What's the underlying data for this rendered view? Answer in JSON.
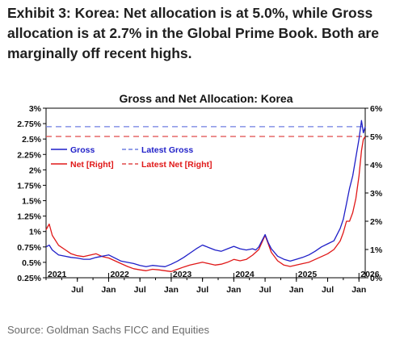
{
  "headline": "Exhibit 3: Korea: Net allocation is at 5.0%, while Gross allocation is at 2.7% in the Global Prime Book. Both are marginally off recent highs.",
  "source": "Source: Goldman Sachs FICC and Equities",
  "colors": {
    "gross": "#1f1fc8",
    "net": "#e01818",
    "latest_gross": "#6e7ee0",
    "latest_net": "#e04a4a",
    "axis": "#000000"
  },
  "chart_data": {
    "type": "line",
    "title": "Gross and Net Allocation: Korea",
    "xlabel": "",
    "ylabel_left": "",
    "ylabel_right": "",
    "xlim": [
      2021.0,
      2026.1
    ],
    "ylim_left": [
      0.25,
      3.0
    ],
    "ylim_right": [
      0,
      6
    ],
    "y_left_ticks": [
      "3%",
      "2.75%",
      "2.5%",
      "2.25%",
      "2%",
      "1.75%",
      "1.5%",
      "1.25%",
      "1%",
      "0.75%",
      "0.5%",
      "0.25%"
    ],
    "y_left_tick_values": [
      3.0,
      2.75,
      2.5,
      2.25,
      2.0,
      1.75,
      1.5,
      1.25,
      1.0,
      0.75,
      0.5,
      0.25
    ],
    "y_right_ticks": [
      "6%",
      "5%",
      "4%",
      "3%",
      "2%",
      "1%",
      "0%"
    ],
    "y_right_tick_values": [
      6,
      5,
      4,
      3,
      2,
      1,
      0
    ],
    "x_year_labels": [
      {
        "label": "2021",
        "x": 2021.0
      },
      {
        "label": "2022",
        "x": 2022.0
      },
      {
        "label": "2023",
        "x": 2023.0
      },
      {
        "label": "2024",
        "x": 2024.0
      },
      {
        "label": "2025",
        "x": 2025.0
      },
      {
        "label": "2026",
        "x": 2026.0
      }
    ],
    "x_month_labels": [
      {
        "label": "Jul",
        "x": 2021.5
      },
      {
        "label": "Jan",
        "x": 2022.0
      },
      {
        "label": "Jul",
        "x": 2022.5
      },
      {
        "label": "Jan",
        "x": 2023.0
      },
      {
        "label": "Jul",
        "x": 2023.5
      },
      {
        "label": "Jan",
        "x": 2024.0
      },
      {
        "label": "Jul",
        "x": 2024.5
      },
      {
        "label": "Jan",
        "x": 2025.0
      },
      {
        "label": "Jul",
        "x": 2025.5
      },
      {
        "label": "Jan",
        "x": 2026.0
      }
    ],
    "legend": [
      {
        "label": "Gross",
        "color": "#1f1fc8",
        "style": "solid"
      },
      {
        "label": "Latest Gross",
        "color": "#6e7ee0",
        "style": "dashed"
      },
      {
        "label": "Net [Right]",
        "color": "#e01818",
        "style": "solid"
      },
      {
        "label": "Latest Net [Right]",
        "color": "#e04a4a",
        "style": "dashed"
      }
    ],
    "legend_position": "upper-left",
    "grid": false,
    "series": [
      {
        "name": "Gross",
        "axis": "left",
        "x": [
          2021.0,
          2021.05,
          2021.1,
          2021.2,
          2021.3,
          2021.4,
          2021.5,
          2021.6,
          2021.7,
          2021.8,
          2021.9,
          2022.0,
          2022.1,
          2022.2,
          2022.3,
          2022.4,
          2022.5,
          2022.6,
          2022.7,
          2022.8,
          2022.9,
          2023.0,
          2023.1,
          2023.2,
          2023.3,
          2023.4,
          2023.5,
          2023.6,
          2023.7,
          2023.8,
          2023.9,
          2024.0,
          2024.1,
          2024.2,
          2024.3,
          2024.35,
          2024.4,
          2024.5,
          2024.55,
          2024.6,
          2024.7,
          2024.8,
          2024.9,
          2025.0,
          2025.1,
          2025.2,
          2025.3,
          2025.4,
          2025.5,
          2025.6,
          2025.7,
          2025.75,
          2025.8,
          2025.85,
          2025.9,
          2025.95,
          2026.0,
          2026.04,
          2026.07,
          2026.1
        ],
        "values": [
          0.75,
          0.78,
          0.7,
          0.62,
          0.6,
          0.58,
          0.57,
          0.55,
          0.55,
          0.58,
          0.6,
          0.62,
          0.57,
          0.52,
          0.5,
          0.48,
          0.45,
          0.43,
          0.45,
          0.44,
          0.43,
          0.47,
          0.52,
          0.58,
          0.65,
          0.72,
          0.78,
          0.74,
          0.7,
          0.68,
          0.72,
          0.76,
          0.72,
          0.7,
          0.72,
          0.7,
          0.75,
          0.95,
          0.82,
          0.72,
          0.6,
          0.55,
          0.52,
          0.55,
          0.58,
          0.62,
          0.68,
          0.75,
          0.8,
          0.85,
          1.05,
          1.2,
          1.45,
          1.7,
          1.9,
          2.2,
          2.5,
          2.8,
          2.6,
          2.7
        ]
      },
      {
        "name": "Net [Right]",
        "axis": "right",
        "x": [
          2021.0,
          2021.05,
          2021.1,
          2021.2,
          2021.3,
          2021.4,
          2021.5,
          2021.6,
          2021.7,
          2021.8,
          2021.9,
          2022.0,
          2022.1,
          2022.2,
          2022.3,
          2022.4,
          2022.5,
          2022.6,
          2022.7,
          2022.8,
          2022.9,
          2023.0,
          2023.1,
          2023.2,
          2023.3,
          2023.4,
          2023.5,
          2023.6,
          2023.7,
          2023.8,
          2023.9,
          2024.0,
          2024.1,
          2024.2,
          2024.3,
          2024.35,
          2024.4,
          2024.5,
          2024.55,
          2024.6,
          2024.7,
          2024.8,
          2024.9,
          2025.0,
          2025.1,
          2025.2,
          2025.3,
          2025.4,
          2025.5,
          2025.6,
          2025.7,
          2025.75,
          2025.8,
          2025.85,
          2025.9,
          2025.95,
          2026.0,
          2026.04,
          2026.07,
          2026.1
        ],
        "values": [
          1.7,
          1.9,
          1.5,
          1.15,
          1.0,
          0.85,
          0.78,
          0.75,
          0.8,
          0.85,
          0.75,
          0.7,
          0.6,
          0.5,
          0.4,
          0.32,
          0.28,
          0.25,
          0.3,
          0.28,
          0.25,
          0.22,
          0.3,
          0.38,
          0.45,
          0.5,
          0.55,
          0.5,
          0.45,
          0.48,
          0.55,
          0.65,
          0.6,
          0.65,
          0.8,
          0.9,
          1.0,
          1.5,
          1.2,
          0.9,
          0.6,
          0.45,
          0.4,
          0.45,
          0.5,
          0.55,
          0.65,
          0.75,
          0.85,
          1.0,
          1.3,
          1.6,
          2.0,
          2.0,
          2.3,
          2.8,
          3.6,
          4.5,
          4.9,
          5.0
        ]
      },
      {
        "name": "Latest Gross",
        "axis": "left",
        "x": [
          2021.0,
          2026.1
        ],
        "values": [
          2.7,
          2.7
        ]
      },
      {
        "name": "Latest Net [Right]",
        "axis": "right",
        "x": [
          2021.0,
          2026.1
        ],
        "values": [
          5.0,
          5.0
        ]
      }
    ]
  }
}
